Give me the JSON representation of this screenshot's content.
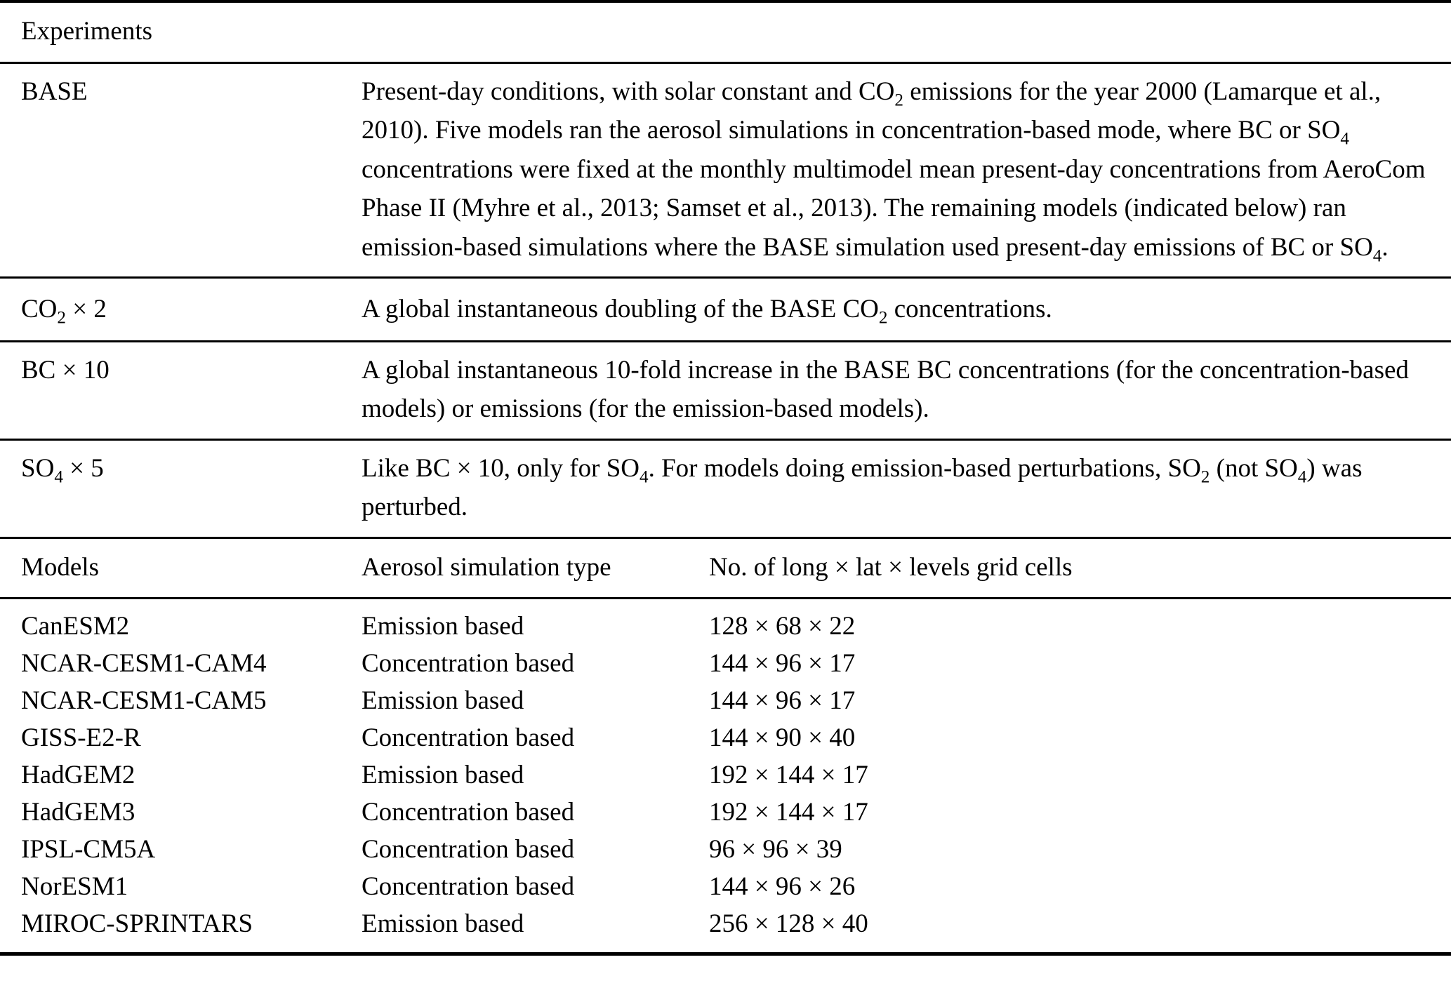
{
  "table": {
    "experiments_header": "Experiments",
    "experiments": [
      {
        "label": "BASE",
        "description": "Present-day conditions, with solar constant and CO~2~ emissions for the year 2000 (Lamarque et al., 2010). Five models ran the aerosol simulations in concentration-based mode, where BC or SO~4~ concentrations were fixed at the monthly multimodel mean present-day concentrations from AeroCom Phase II (Myhre et al., 2013; Samset et al., 2013). The remaining models (indicated below) ran emission-based simulations where the BASE simulation used present-day emissions of BC or SO~4~."
      },
      {
        "label": "CO~2~ × 2",
        "description": "A global instantaneous doubling of the BASE CO~2~ concentrations."
      },
      {
        "label": "BC × 10",
        "description": "A global instantaneous 10-fold increase in the BASE BC concentrations (for the concentration-based models) or emissions (for the emission-based models)."
      },
      {
        "label": "SO~4~ × 5",
        "description": "Like BC × 10, only for SO~4~. For models doing emission-based perturbations, SO~2~ (not SO~4~) was perturbed."
      }
    ],
    "models_header": {
      "col_models": "Models",
      "col_type": "Aerosol simulation type",
      "col_grid": "No. of long × lat × levels grid cells"
    },
    "models": [
      {
        "name": "CanESM2",
        "type": "Emission based",
        "grid": "128 × 68 × 22"
      },
      {
        "name": "NCAR-CESM1-CAM4",
        "type": "Concentration based",
        "grid": "144 × 96 × 17"
      },
      {
        "name": "NCAR-CESM1-CAM5",
        "type": "Emission based",
        "grid": "144 × 96 × 17"
      },
      {
        "name": "GISS-E2-R",
        "type": "Concentration based",
        "grid": "144 × 90 × 40"
      },
      {
        "name": "HadGEM2",
        "type": "Emission based",
        "grid": "192 × 144 × 17"
      },
      {
        "name": "HadGEM3",
        "type": "Concentration based",
        "grid": "192 × 144 × 17"
      },
      {
        "name": "IPSL-CM5A",
        "type": "Concentration based",
        "grid": "96 × 96 × 39"
      },
      {
        "name": "NorESM1",
        "type": "Concentration based",
        "grid": "144 × 96 × 26"
      },
      {
        "name": "MIROC-SPRINTARS",
        "type": "Emission based",
        "grid": "256 × 128 × 40"
      }
    ],
    "colors": {
      "text": "#000000",
      "background": "#ffffff",
      "rule": "#000000"
    }
  }
}
